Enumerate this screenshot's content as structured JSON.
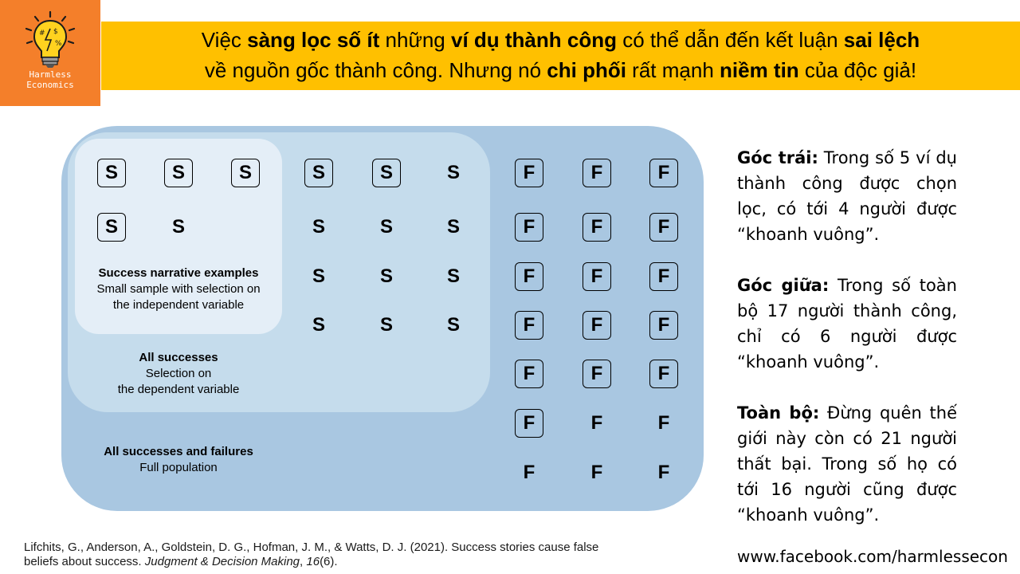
{
  "logo": {
    "line1": "Harmless",
    "line2": "Economics"
  },
  "headline": {
    "line1": [
      "Việc ",
      "sàng lọc số ít",
      " những ",
      "ví dụ thành công",
      " có thể dẫn đến kết luận ",
      "sai lệch"
    ],
    "line2": [
      "về nguồn gốc thành công. Nhưng nó ",
      "chi phối",
      " rất mạnh ",
      "niềm tin",
      " của độc giả!"
    ]
  },
  "diagram": {
    "narrative": {
      "title": "Success narrative examples",
      "line1": "Small sample with selection on",
      "line2": "the independent variable"
    },
    "successes": {
      "title": "All successes",
      "line1": "Selection on",
      "line2": "the dependent variable"
    },
    "population": {
      "title": "All successes and failures",
      "line1": "Full population"
    },
    "markers": [
      {
        "t": "S",
        "boxed": true
      },
      {
        "t": "S",
        "boxed": true
      },
      {
        "t": "S",
        "boxed": true
      },
      {
        "t": "S",
        "boxed": true
      },
      {
        "t": "S",
        "boxed": true
      },
      {
        "t": "S",
        "boxed": false
      },
      {
        "t": "S",
        "boxed": true
      },
      {
        "t": "S",
        "boxed": false
      },
      {
        "t": "S",
        "boxed": false
      },
      {
        "t": "S",
        "boxed": false
      },
      {
        "t": "S",
        "boxed": false
      },
      {
        "t": "S",
        "boxed": false
      },
      {
        "t": "S",
        "boxed": false
      },
      {
        "t": "S",
        "boxed": false
      },
      {
        "t": "S",
        "boxed": false
      },
      {
        "t": "S",
        "boxed": false
      },
      {
        "t": "S",
        "boxed": false
      },
      {
        "t": "F",
        "boxed": true
      },
      {
        "t": "F",
        "boxed": true
      },
      {
        "t": "F",
        "boxed": true
      },
      {
        "t": "F",
        "boxed": true
      },
      {
        "t": "F",
        "boxed": true
      },
      {
        "t": "F",
        "boxed": true
      },
      {
        "t": "F",
        "boxed": true
      },
      {
        "t": "F",
        "boxed": true
      },
      {
        "t": "F",
        "boxed": true
      },
      {
        "t": "F",
        "boxed": true
      },
      {
        "t": "F",
        "boxed": true
      },
      {
        "t": "F",
        "boxed": true
      },
      {
        "t": "F",
        "boxed": true
      },
      {
        "t": "F",
        "boxed": true
      },
      {
        "t": "F",
        "boxed": true
      },
      {
        "t": "F",
        "boxed": true
      },
      {
        "t": "F",
        "boxed": false
      },
      {
        "t": "F",
        "boxed": false
      },
      {
        "t": "F",
        "boxed": false
      },
      {
        "t": "F",
        "boxed": false
      },
      {
        "t": "F",
        "boxed": false
      }
    ]
  },
  "sidebar": [
    {
      "label": "Góc trái:",
      "text": " Trong số 5 ví dụ thành công được chọn lọc, có tới 4 người được “khoanh vuông”."
    },
    {
      "label": "Góc giữa:",
      "text": " Trong số toàn bộ 17 người thành công, chỉ có 6 người được “khoanh vuông”."
    },
    {
      "label": "Toàn bộ:",
      "text": " Đừng quên thế giới này còn có 21 người thất bại. Trong số họ  có tới 16 người cũng được “khoanh vuông”."
    }
  ],
  "reference": {
    "pre": "Lifchits, G., Anderson, A., Goldstein, D. G., Hofman, J. M., & Watts, D. J. (2021). Success stories cause false beliefs about success. ",
    "journal": "Judgment & Decision Making",
    "sep": ", ",
    "volume": "16",
    "issue": "(6)."
  },
  "footer": {
    "url": "www.facebook.com/harmlessecon"
  },
  "colors": {
    "logo_bg": "#f47f2a",
    "title_bg": "#ffc000",
    "population": "#a9c7e1",
    "successes": "#c5dcec",
    "narrative": "#e4eef7"
  }
}
